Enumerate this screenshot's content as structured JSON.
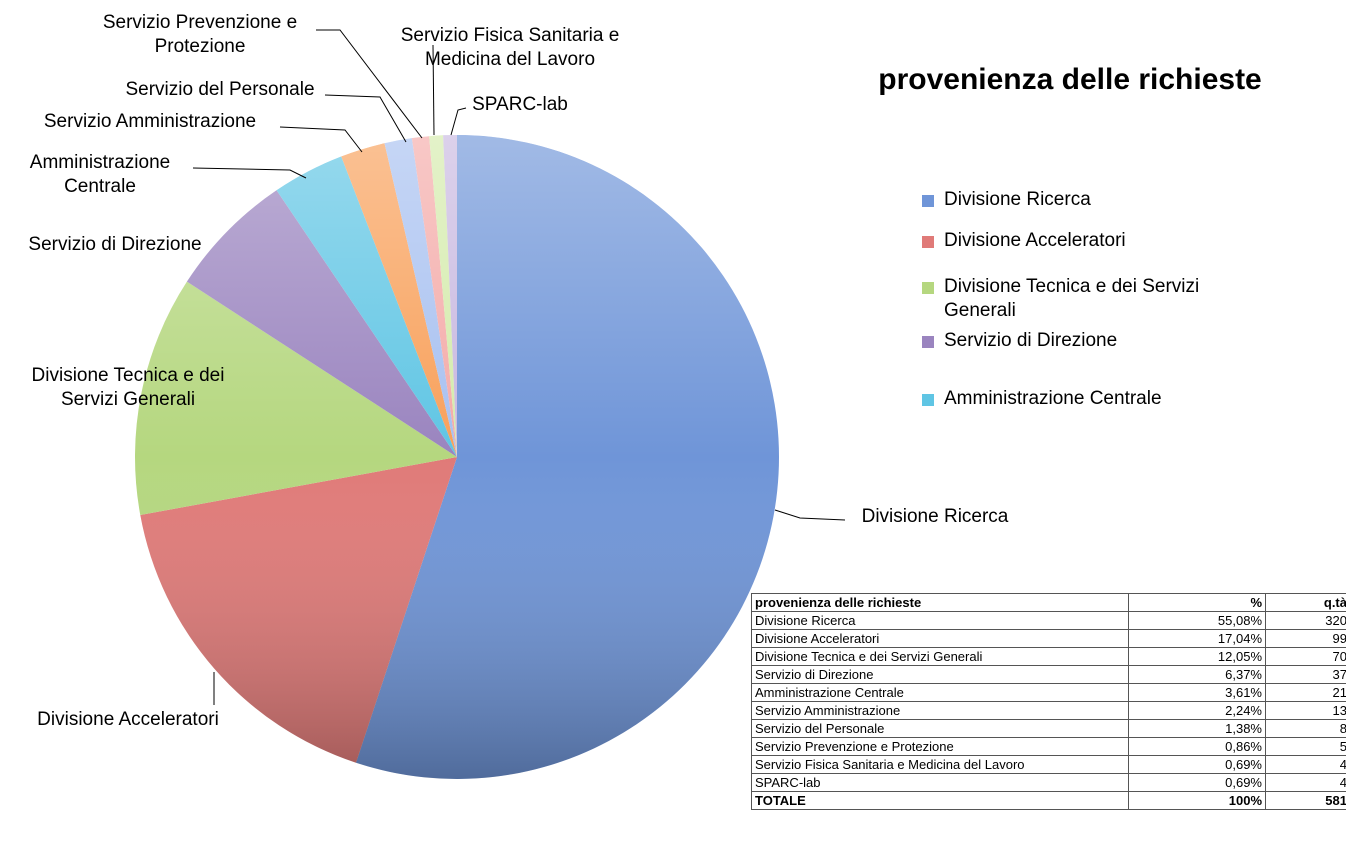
{
  "chart_data": {
    "type": "pie",
    "title": "provenienza delle richieste",
    "categories": [
      "Divisione Ricerca",
      "Divisione Acceleratori",
      "Divisione Tecnica e dei Servizi Generali",
      "Servizio di Direzione",
      "Amministrazione Centrale",
      "Servizio Amministrazione",
      "Servizio del Personale",
      "Servizio Prevenzione e Protezione",
      "Servizio Fisica Sanitaria e Medicina del Lavoro",
      "SPARC-lab"
    ],
    "values": [
      320,
      99,
      70,
      37,
      21,
      13,
      8,
      5,
      4,
      4
    ],
    "colors": [
      "#6f95d8",
      "#e07a78",
      "#b5d77f",
      "#9a84bf",
      "#5fc5e4",
      "#f8a05a",
      "#a7c0f0",
      "#f4aaa8",
      "#d4ebab",
      "#c8b8e0"
    ],
    "legend": [
      "Divisione Ricerca",
      "Divisione Acceleratori",
      "Divisione Tecnica e dei Servizi Generali",
      "Servizio di Direzione",
      "Amministrazione Centrale"
    ],
    "legend_position": "right"
  },
  "table": {
    "header": [
      "provenienza delle richieste",
      "%",
      "q.tà"
    ],
    "rows": [
      [
        "Divisione Ricerca",
        "55,08%",
        "320"
      ],
      [
        "Divisione Acceleratori",
        "17,04%",
        "99"
      ],
      [
        "Divisione Tecnica e dei Servizi Generali",
        "12,05%",
        "70"
      ],
      [
        "Servizio di Direzione",
        "6,37%",
        "37"
      ],
      [
        "Amministrazione Centrale",
        "3,61%",
        "21"
      ],
      [
        "Servizio Amministrazione",
        "2,24%",
        "13"
      ],
      [
        "Servizio del Personale",
        "1,38%",
        "8"
      ],
      [
        "Servizio Prevenzione e Protezione",
        "0,86%",
        "5"
      ],
      [
        "Servizio Fisica Sanitaria e Medicina del Lavoro",
        "0,69%",
        "4"
      ],
      [
        "SPARC-lab",
        "0,69%",
        "4"
      ]
    ],
    "total": [
      "TOTALE",
      "100%",
      "581"
    ]
  }
}
